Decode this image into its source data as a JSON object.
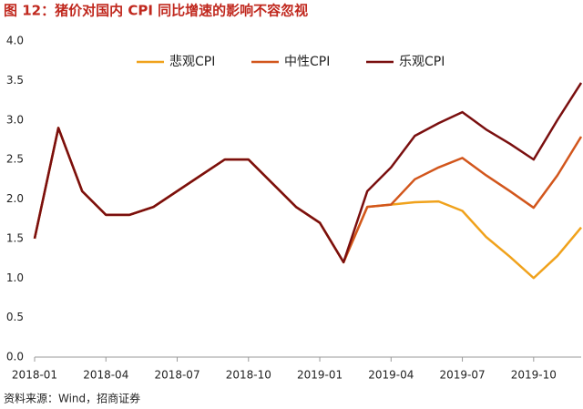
{
  "chart_data": {
    "type": "line",
    "title": "图 12：猪价对国内 CPI 同比增速的影响不容忽视",
    "source": "资料来源：Wind，招商证券",
    "categories": [
      "2018-01",
      null,
      null,
      "2018-04",
      null,
      null,
      "2018-07",
      null,
      null,
      "2018-10",
      null,
      null,
      "2019-01",
      null,
      null,
      "2019-04",
      null,
      null,
      "2019-07",
      null,
      null,
      "2019-10",
      null,
      null
    ],
    "series": [
      {
        "name": "悲观CPI",
        "color": "#f0a21c",
        "values": [
          1.5,
          2.9,
          2.1,
          1.8,
          1.8,
          1.9,
          2.1,
          2.3,
          2.5,
          2.5,
          2.2,
          1.9,
          1.7,
          1.2,
          1.9,
          1.93,
          1.96,
          1.97,
          1.85,
          1.52,
          1.27,
          1.0,
          1.28,
          1.64
        ]
      },
      {
        "name": "中性CPI",
        "color": "#d2561c",
        "values": [
          1.5,
          2.9,
          2.1,
          1.8,
          1.8,
          1.9,
          2.1,
          2.3,
          2.5,
          2.5,
          2.2,
          1.9,
          1.7,
          1.2,
          1.9,
          1.93,
          2.25,
          2.4,
          2.52,
          2.3,
          2.1,
          1.89,
          2.3,
          2.79
        ]
      },
      {
        "name": "乐观CPI",
        "color": "#7a0f0f",
        "values": [
          1.5,
          2.9,
          2.1,
          1.8,
          1.8,
          1.9,
          2.1,
          2.3,
          2.5,
          2.5,
          2.2,
          1.9,
          1.7,
          1.2,
          2.1,
          2.4,
          2.8,
          2.96,
          3.1,
          2.88,
          2.7,
          2.5,
          3.0,
          3.47
        ]
      }
    ],
    "ylim": [
      0,
      4.0
    ],
    "yticks": [
      {
        "value": 0,
        "label": "0.0"
      },
      0.5,
      {
        "value": 1,
        "label": "1.0"
      },
      1.5,
      {
        "value": 2,
        "label": "2.0"
      },
      2.5,
      {
        "value": 3,
        "label": "3.0"
      },
      3.5,
      {
        "value": 4,
        "label": "4.0"
      }
    ],
    "legend": "top",
    "grid": false
  }
}
